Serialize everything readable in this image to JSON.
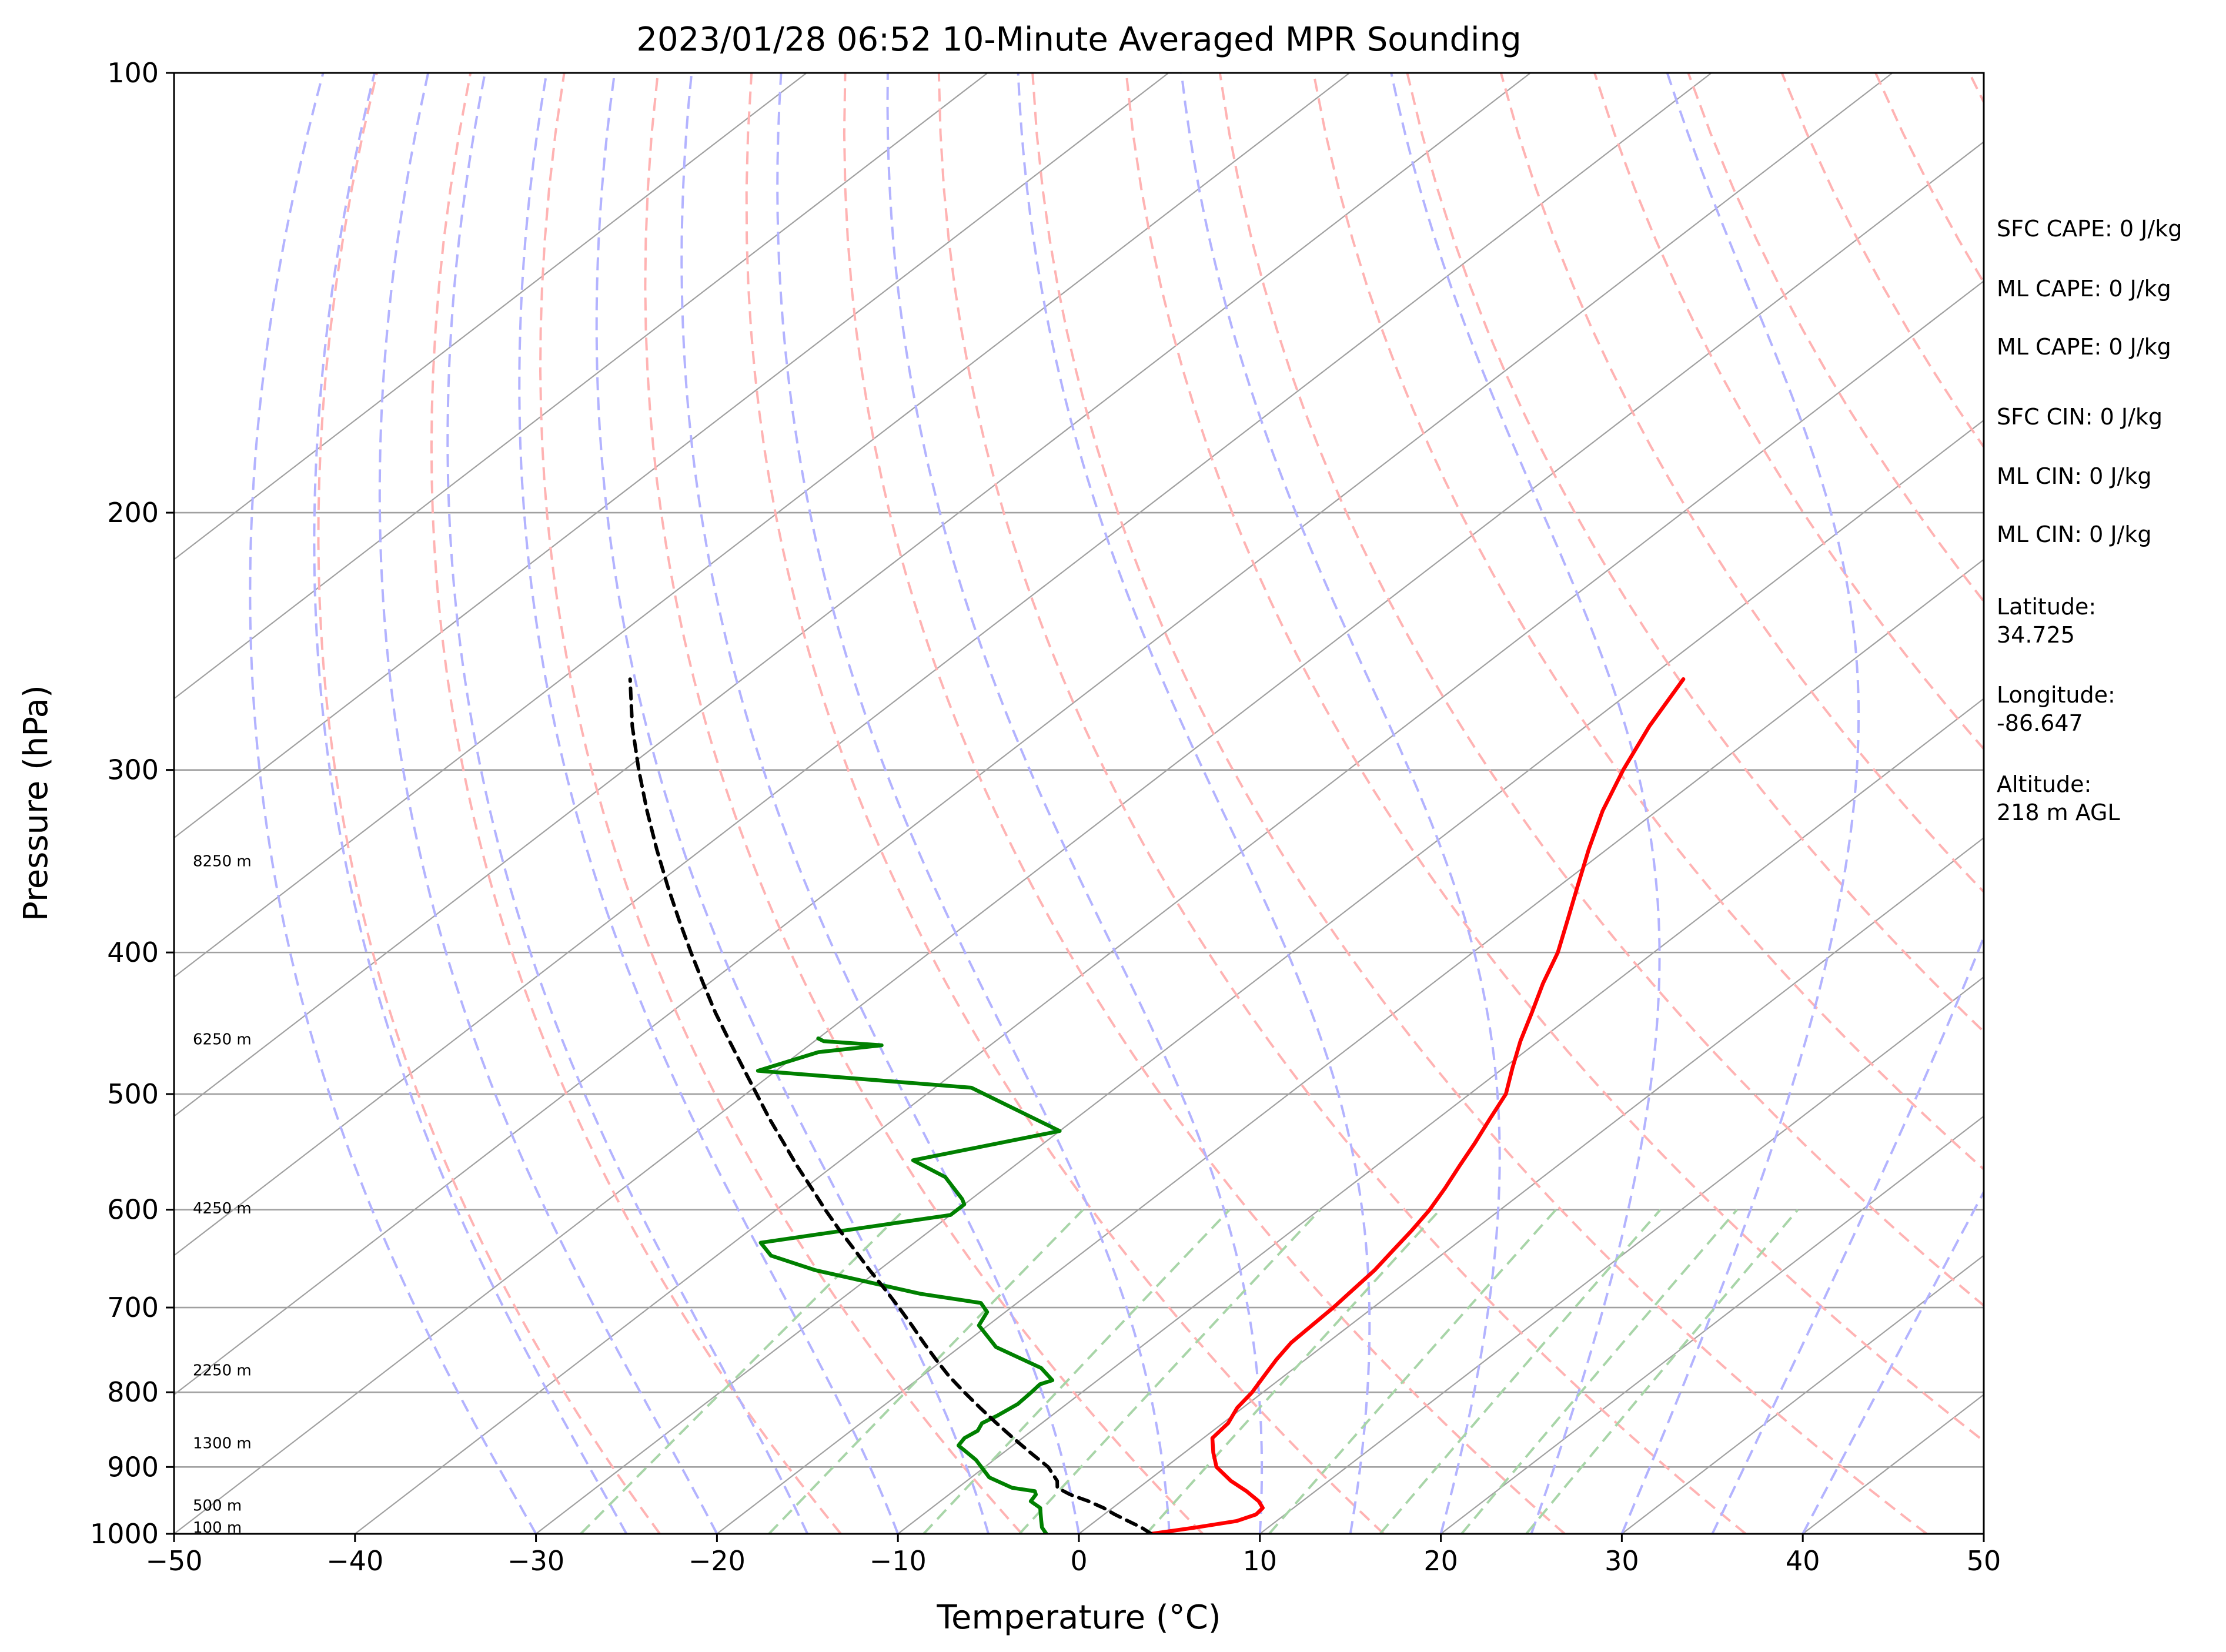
{
  "chart_data": {
    "type": "line",
    "title": "2023/01/28 06:52 10-Minute Averaged MPR Sounding",
    "xlabel": "Temperature (°C)",
    "ylabel": "Pressure (hPa)",
    "xlim": [
      -50,
      50
    ],
    "ylim": [
      1000,
      100
    ],
    "y_scale": "log",
    "skew": true,
    "grid": true,
    "x_ticks": [
      -50,
      -40,
      -30,
      -20,
      -10,
      0,
      10,
      20,
      30,
      40,
      50
    ],
    "x_tick_labels": [
      "−50",
      "−40",
      "−30",
      "−20",
      "−10",
      "0",
      "10",
      "20",
      "30",
      "40",
      "50"
    ],
    "y_ticks": [
      100,
      200,
      300,
      400,
      500,
      600,
      700,
      800,
      900,
      1000
    ],
    "y_tick_labels": [
      "100",
      "200",
      "300",
      "400",
      "500",
      "600",
      "700",
      "800",
      "900",
      "1000"
    ],
    "colors": {
      "temperature": "#ff0000",
      "dewpoint": "#008000",
      "parcel": "#000000",
      "isotherm": "#a0a0a0",
      "dry_adiabat": "#ffb3b3",
      "moist_adiabat": "#b3b3ff",
      "mixing_ratio": "#a8d5a8"
    },
    "series": [
      {
        "key": "temperature",
        "points": [
          [
            4.0,
            1000
          ],
          [
            6.0,
            990
          ],
          [
            7.8,
            980
          ],
          [
            8.4,
            970
          ],
          [
            8.3,
            960
          ],
          [
            7.6,
            950
          ],
          [
            6.2,
            935
          ],
          [
            4.6,
            920
          ],
          [
            2.8,
            900
          ],
          [
            1.6,
            880
          ],
          [
            0.5,
            860
          ],
          [
            0.3,
            840
          ],
          [
            0.0,
            830
          ],
          [
            -0.3,
            820
          ],
          [
            -0.6,
            800
          ],
          [
            -1.1,
            780
          ],
          [
            -1.6,
            760
          ],
          [
            -2.0,
            740
          ],
          [
            -2.1,
            720
          ],
          [
            -2.2,
            700
          ],
          [
            -2.4,
            680
          ],
          [
            -2.6,
            660
          ],
          [
            -3.0,
            640
          ],
          [
            -3.4,
            620
          ],
          [
            -3.9,
            600
          ],
          [
            -4.6,
            580
          ],
          [
            -5.4,
            560
          ],
          [
            -6.2,
            540
          ],
          [
            -7.1,
            520
          ],
          [
            -8.0,
            500
          ],
          [
            -9.5,
            480
          ],
          [
            -11.0,
            460
          ],
          [
            -12.4,
            440
          ],
          [
            -13.9,
            420
          ],
          [
            -15.3,
            400
          ],
          [
            -17.1,
            380
          ],
          [
            -19.0,
            360
          ],
          [
            -21.0,
            340
          ],
          [
            -23.0,
            320
          ],
          [
            -24.8,
            300
          ],
          [
            -26.5,
            280
          ],
          [
            -28.0,
            260
          ]
        ]
      },
      {
        "key": "dewpoint",
        "points": [
          [
            -1.8,
            1000
          ],
          [
            -2.5,
            990
          ],
          [
            -3.0,
            980
          ],
          [
            -3.5,
            970
          ],
          [
            -4.0,
            960
          ],
          [
            -5.0,
            950
          ],
          [
            -5.2,
            940
          ],
          [
            -5.5,
            935
          ],
          [
            -7.0,
            930
          ],
          [
            -9.0,
            915
          ],
          [
            -11.0,
            890
          ],
          [
            -13.0,
            870
          ],
          [
            -13.2,
            860
          ],
          [
            -13.0,
            850
          ],
          [
            -13.3,
            840
          ],
          [
            -13.0,
            830
          ],
          [
            -12.7,
            815
          ],
          [
            -12.8,
            800
          ],
          [
            -12.9,
            790
          ],
          [
            -12.5,
            785
          ],
          [
            -14.0,
            770
          ],
          [
            -18.0,
            745
          ],
          [
            -20.5,
            720
          ],
          [
            -21.0,
            705
          ],
          [
            -22.0,
            695
          ],
          [
            -26.0,
            685
          ],
          [
            -33.5,
            660
          ],
          [
            -37.0,
            645
          ],
          [
            -38.5,
            632
          ],
          [
            -30.0,
            605
          ],
          [
            -30.0,
            595
          ],
          [
            -30.5,
            590
          ],
          [
            -33.0,
            570
          ],
          [
            -36.0,
            555
          ],
          [
            -30.0,
            530
          ],
          [
            -38.0,
            495
          ],
          [
            -51.0,
            482
          ],
          [
            -49.0,
            468
          ],
          [
            -46.0,
            463
          ],
          [
            -49.5,
            460
          ],
          [
            -50.0,
            458
          ]
        ]
      },
      {
        "key": "parcel",
        "points": [
          [
            4.0,
            1000
          ],
          [
            3.0,
            990
          ],
          [
            1.8,
            980
          ],
          [
            0.6,
            970
          ],
          [
            -0.5,
            960
          ],
          [
            -1.8,
            950
          ],
          [
            -3.3,
            940
          ],
          [
            -4.5,
            930
          ],
          [
            -5.0,
            920
          ],
          [
            -6.5,
            900
          ],
          [
            -8.5,
            880
          ],
          [
            -10.5,
            860
          ],
          [
            -12.5,
            840
          ],
          [
            -14.5,
            820
          ],
          [
            -16.5,
            800
          ],
          [
            -18.5,
            780
          ],
          [
            -20.4,
            760
          ],
          [
            -22.3,
            740
          ],
          [
            -24.2,
            720
          ],
          [
            -26.2,
            700
          ],
          [
            -28.3,
            680
          ],
          [
            -30.5,
            660
          ],
          [
            -32.7,
            640
          ],
          [
            -35.0,
            620
          ],
          [
            -37.3,
            600
          ],
          [
            -39.6,
            580
          ],
          [
            -42.0,
            560
          ],
          [
            -44.4,
            540
          ],
          [
            -46.9,
            520
          ],
          [
            -49.4,
            500
          ],
          [
            -52.0,
            480
          ],
          [
            -54.7,
            460
          ],
          [
            -57.5,
            440
          ],
          [
            -60.3,
            420
          ],
          [
            -63.2,
            400
          ],
          [
            -66.2,
            380
          ],
          [
            -69.3,
            360
          ],
          [
            -72.5,
            340
          ],
          [
            -75.8,
            320
          ],
          [
            -79.2,
            300
          ],
          [
            -82.7,
            280
          ],
          [
            -86.2,
            260
          ]
        ]
      }
    ],
    "height_labels": [
      {
        "text": "100 m",
        "pressure": 989
      },
      {
        "text": "500 m",
        "pressure": 955
      },
      {
        "text": "1300 m",
        "pressure": 866
      },
      {
        "text": "2250 m",
        "pressure": 772
      },
      {
        "text": "4250 m",
        "pressure": 598
      },
      {
        "text": "6250 m",
        "pressure": 458
      },
      {
        "text": "8250 m",
        "pressure": 346
      }
    ],
    "annotations": [
      "SFC CAPE: 0 J/kg",
      "ML CAPE: 0 J/kg",
      "ML CAPE: 0 J/kg",
      "SFC CIN: 0 J/kg",
      "ML CIN: 0 J/kg",
      "ML CIN: 0 J/kg",
      "Latitude:\n34.725",
      "Longitude:\n-86.647",
      "Altitude:\n218 m AGL"
    ]
  }
}
